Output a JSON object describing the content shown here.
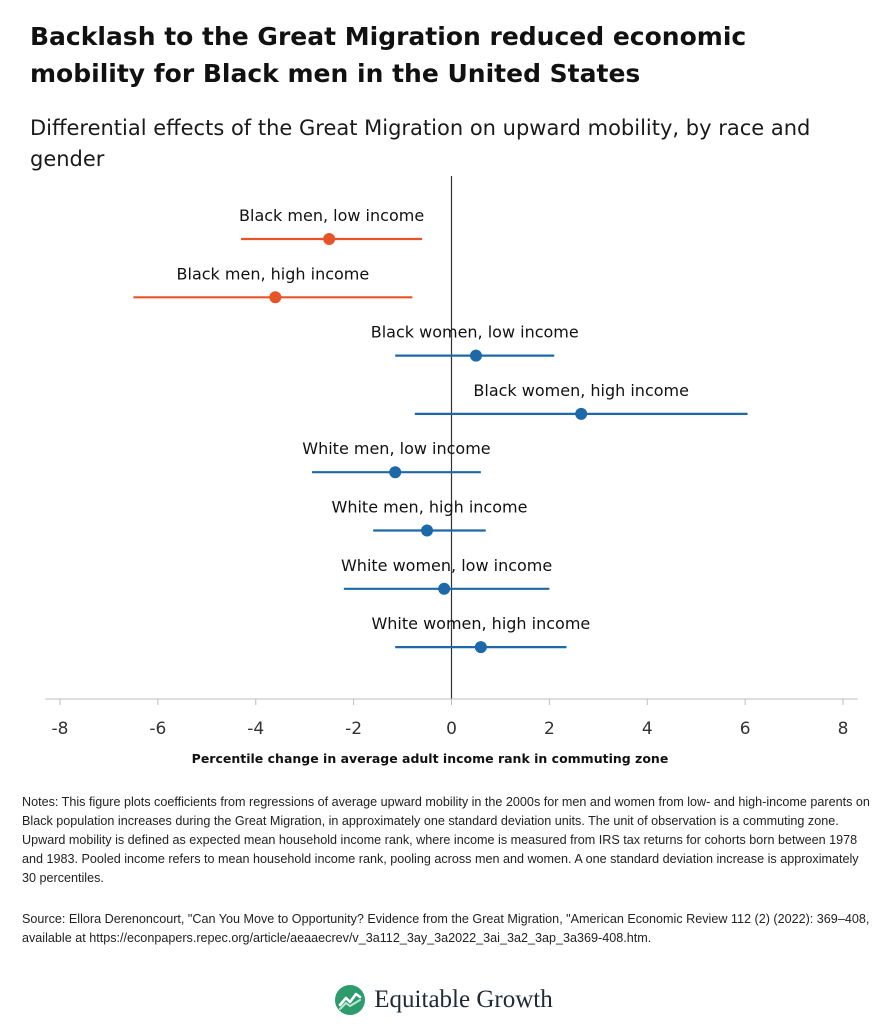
{
  "title": "Backlash to the Great Migration reduced economic mobility for Black men in the United States",
  "subtitle": "Differential effects of the Great Migration on upward mobility, by race and gender",
  "chart_data": {
    "type": "scatter",
    "subtype": "coefficient plot with confidence intervals",
    "xlabel": "Percentile change in average adult income rank in commuting zone",
    "ylabel": "",
    "xlim": [
      -8.3,
      8.3
    ],
    "xticks": [
      -8,
      -6,
      -4,
      -2,
      0,
      2,
      4,
      6,
      8
    ],
    "xtick_labels": [
      "-8",
      "-6",
      "-4",
      "-2",
      "0",
      "2",
      "4",
      "6",
      "8"
    ],
    "reference_line": 0,
    "grid": false,
    "series": [
      {
        "label": "Black men, low income",
        "estimate": -2.5,
        "ci_low": -4.3,
        "ci_high": -0.6,
        "color": "#e8542a"
      },
      {
        "label": "Black men, high income",
        "estimate": -3.6,
        "ci_low": -6.5,
        "ci_high": -0.8,
        "color": "#e8542a"
      },
      {
        "label": "Black women, low income",
        "estimate": 0.5,
        "ci_low": -1.15,
        "ci_high": 2.1,
        "color": "#1d68a8"
      },
      {
        "label": "Black women, high income",
        "estimate": 2.65,
        "ci_low": -0.75,
        "ci_high": 6.05,
        "color": "#1d68a8"
      },
      {
        "label": "White men, low income",
        "estimate": -1.15,
        "ci_low": -2.85,
        "ci_high": 0.6,
        "color": "#1d68a8"
      },
      {
        "label": "White men, high income",
        "estimate": -0.5,
        "ci_low": -1.6,
        "ci_high": 0.7,
        "color": "#1d68a8"
      },
      {
        "label": "White women, low income",
        "estimate": -0.15,
        "ci_low": -2.2,
        "ci_high": 2.0,
        "color": "#1d68a8"
      },
      {
        "label": "White women, high income",
        "estimate": 0.6,
        "ci_low": -1.15,
        "ci_high": 2.35,
        "color": "#1d68a8"
      }
    ]
  },
  "notes": "Notes: This figure plots coefficients from regressions of average upward mobility in the 2000s for men and women from low- and high-income parents on Black population increases during the Great Migration, in approximately one standard deviation units. The unit of observation is a commuting zone. Upward mobility is defined as expected mean household income rank, where income is measured from IRS tax returns for cohorts born between 1978 and 1983. Pooled income refers to mean household income rank, pooling across men and women. A one standard deviation increase is approximately 30 percentiles.",
  "source": "Source: Ellora Derenoncourt, \"Can You Move to Opportunity? Evidence from the Great Migration, \"American Economic Review 112 (2) (2022): 369–408, available at https://econpapers.repec.org/article/aeaaecrev/v_3a112_3ay_3a2022_3ai_3a2_3ap_3a369-408.htm.",
  "logo": {
    "text": "Equitable Growth",
    "icon": "equitable-growth-leaf-icon"
  }
}
